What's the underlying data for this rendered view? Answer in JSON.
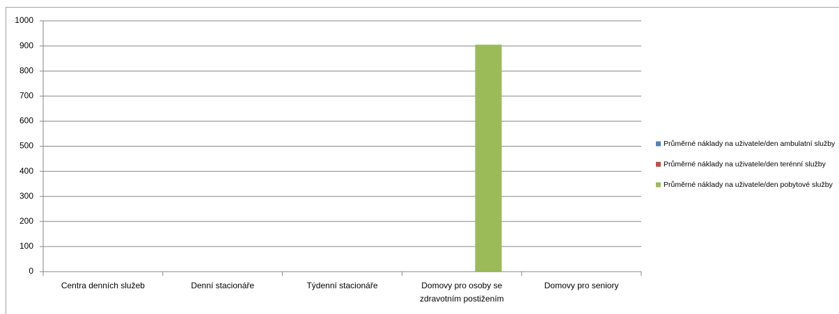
{
  "chart_data": {
    "type": "bar",
    "categories": [
      "Centra denních služeb",
      "Denní stacionáře",
      "Týdenní stacionáře",
      "Domovy pro osoby se zdravotním postižením",
      "Domovy pro seniory"
    ],
    "series": [
      {
        "name": "Průměrné náklady na uživatele/den ambulatní služby",
        "color": "#4f81bd",
        "values": [
          null,
          null,
          null,
          null,
          null
        ]
      },
      {
        "name": "Průměrné náklady na uživatele/den terénní služby",
        "color": "#c0504d",
        "values": [
          null,
          null,
          null,
          null,
          null
        ]
      },
      {
        "name": "Průměrné náklady na uživatele/den pobytové služby",
        "color": "#9bbb59",
        "values": [
          null,
          null,
          null,
          905,
          null
        ]
      }
    ],
    "ylim": [
      0,
      1000
    ],
    "yticks": [
      0,
      100,
      200,
      300,
      400,
      500,
      600,
      700,
      800,
      900,
      1000
    ],
    "grid": true,
    "legend": "right"
  }
}
